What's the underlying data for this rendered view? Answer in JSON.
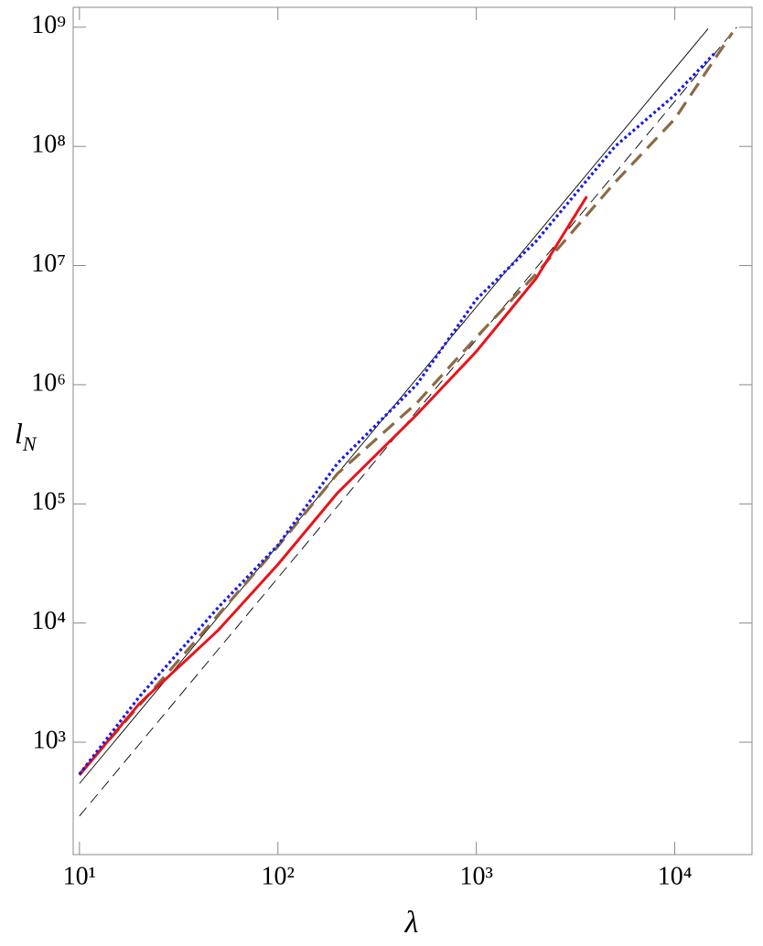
{
  "chart_data": {
    "type": "line",
    "x_label": "λ",
    "y_label": "l",
    "y_label_subscript": "N",
    "xlog": true,
    "ylog": true,
    "xlim": [
      9.3,
      24500
    ],
    "ylim": [
      114,
      1470000000
    ],
    "xticks": [
      {
        "value": 10,
        "label": "10¹"
      },
      {
        "value": 100,
        "label": "10²"
      },
      {
        "value": 1000,
        "label": "10³"
      },
      {
        "value": 10000,
        "label": "10⁴"
      }
    ],
    "yticks": [
      {
        "value": 1000,
        "label": "10³"
      },
      {
        "value": 10000,
        "label": "10⁴"
      },
      {
        "value": 100000,
        "label": "10⁵"
      },
      {
        "value": 1000000,
        "label": "10⁶"
      },
      {
        "value": 10000000,
        "label": "10⁷"
      },
      {
        "value": 100000000,
        "label": "10⁸"
      },
      {
        "value": 1000000000,
        "label": "10⁹"
      }
    ],
    "series": [
      {
        "color": "#000000",
        "style": "thin",
        "x": [
          10,
          14700
        ],
        "values": [
          450,
          970000000
        ]
      },
      {
        "color": "#000000",
        "style": "thin-dashed",
        "x": [
          10,
          20500
        ],
        "values": [
          240,
          1000000000
        ]
      },
      {
        "color": "#8b6b45",
        "style": "dashed",
        "x": [
          10,
          100,
          200,
          500,
          1000,
          2000,
          5000,
          10000,
          19500
        ],
        "values": [
          540,
          44000,
          180000,
          700000,
          2500000,
          8500000,
          50000000,
          170000000,
          900000000
        ]
      },
      {
        "color": "#e8141b",
        "style": "solid",
        "x": [
          10,
          20,
          50,
          100,
          200,
          500,
          1000,
          2000,
          3600
        ],
        "values": [
          530,
          2100,
          8700,
          31000,
          124000,
          560000,
          1900000,
          7800000,
          38000000
        ]
      },
      {
        "color": "#1a1ae0",
        "style": "dotted",
        "x": [
          10,
          20,
          50,
          100,
          200,
          500,
          1000,
          2000,
          5000,
          10000,
          15800
        ],
        "values": [
          540,
          2400,
          13500,
          45000,
          220000,
          1000000,
          5200000,
          16000000,
          100000000,
          270000000,
          600000000
        ]
      }
    ]
  }
}
